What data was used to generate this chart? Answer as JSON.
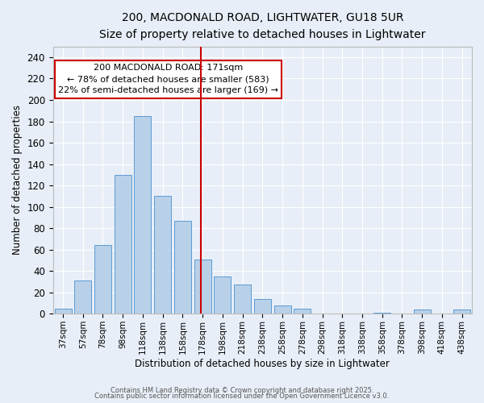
{
  "title": "200, MACDONALD ROAD, LIGHTWATER, GU18 5UR",
  "subtitle": "Size of property relative to detached houses in Lightwater",
  "xlabel": "Distribution of detached houses by size in Lightwater",
  "ylabel": "Number of detached properties",
  "bar_labels": [
    "37sqm",
    "57sqm",
    "78sqm",
    "98sqm",
    "118sqm",
    "138sqm",
    "158sqm",
    "178sqm",
    "198sqm",
    "218sqm",
    "238sqm",
    "258sqm",
    "278sqm",
    "298sqm",
    "318sqm",
    "338sqm",
    "358sqm",
    "378sqm",
    "398sqm",
    "418sqm",
    "438sqm"
  ],
  "bar_values": [
    5,
    31,
    64,
    130,
    185,
    110,
    87,
    51,
    35,
    27,
    14,
    8,
    5,
    0,
    0,
    0,
    1,
    0,
    4,
    0,
    4
  ],
  "bar_color": "#B8D0E8",
  "bar_edge_color": "#5B9BD5",
  "background_color": "#E8EEF7",
  "grid_color": "#FFFFFF",
  "vline_index": 7,
  "vline_color": "#CC0000",
  "annotation_text": "200 MACDONALD ROAD: 171sqm\n← 78% of detached houses are smaller (583)\n22% of semi-detached houses are larger (169) →",
  "annotation_box_color": "#FFFFFF",
  "annotation_box_edge": "#CC0000",
  "ylim": [
    0,
    250
  ],
  "yticks": [
    0,
    20,
    40,
    60,
    80,
    100,
    120,
    140,
    160,
    180,
    200,
    220,
    240
  ],
  "footnote1": "Contains HM Land Registry data © Crown copyright and database right 2025.",
  "footnote2": "Contains public sector information licensed under the Open Government Licence v3.0."
}
